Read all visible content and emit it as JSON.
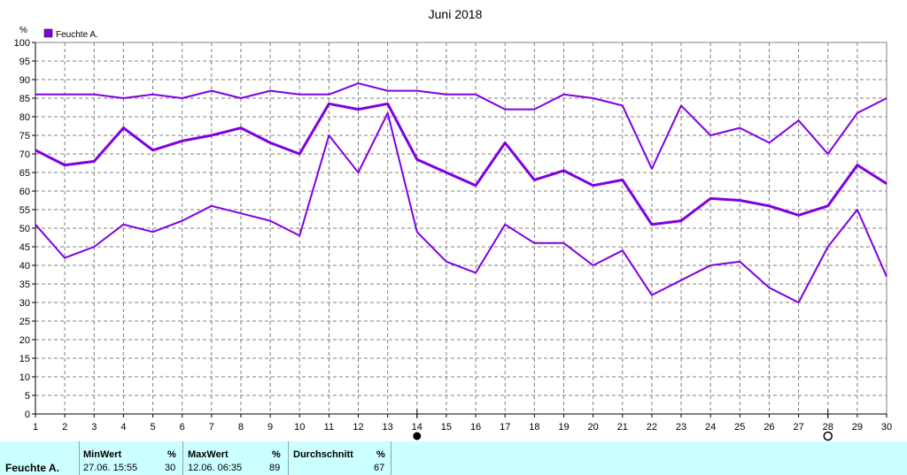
{
  "chart_data": {
    "type": "line",
    "title": "Juni 2018",
    "ylabel": "%",
    "xlabel": "",
    "ylim": [
      0,
      100
    ],
    "xlim": [
      1,
      30
    ],
    "grid": true,
    "legend_position": "top-left",
    "x_ticks": [
      "1",
      "2",
      "3",
      "4",
      "5",
      "6",
      "7",
      "8",
      "9",
      "10",
      "11",
      "12",
      "13",
      "14",
      "15",
      "16",
      "17",
      "18",
      "19",
      "20",
      "21",
      "22",
      "23",
      "24",
      "25",
      "26",
      "27",
      "28",
      "29",
      "30"
    ],
    "y_ticks": [
      "0",
      "5",
      "10",
      "15",
      "20",
      "25",
      "30",
      "35",
      "40",
      "45",
      "50",
      "55",
      "60",
      "65",
      "70",
      "75",
      "80",
      "85",
      "90",
      "95",
      "100"
    ],
    "legend": [
      "Feuchte A."
    ],
    "series": [
      {
        "name": "Feuchte A. max",
        "values": [
          86,
          86,
          86,
          85,
          86,
          85,
          87,
          85,
          87,
          86,
          86,
          89,
          87,
          87,
          86,
          86,
          82,
          82,
          86,
          85,
          83,
          66,
          83,
          75,
          77,
          73,
          79,
          70,
          81,
          85
        ]
      },
      {
        "name": "Feuchte A. avg",
        "values": [
          71,
          67,
          68,
          77,
          71,
          73.5,
          75,
          77,
          73,
          70,
          83.5,
          82,
          83.5,
          68.5,
          65,
          61.5,
          73,
          63,
          65.5,
          61.5,
          63,
          51,
          52,
          58,
          57.5,
          56,
          53.5,
          56,
          67,
          62
        ]
      },
      {
        "name": "Feuchte A. min",
        "values": [
          51,
          42,
          45,
          51,
          49,
          52,
          56,
          54,
          52,
          48,
          75,
          65,
          81,
          49,
          41,
          38,
          51,
          46,
          46,
          40,
          44,
          32,
          36,
          40,
          41,
          34,
          30,
          45,
          55,
          37
        ]
      }
    ],
    "line_color": "#8000e0",
    "markers": [
      {
        "x": 14,
        "kind": "filled-circle"
      },
      {
        "x": 28,
        "kind": "open-circle"
      }
    ]
  },
  "stats": {
    "series_label": "Feuchte A.",
    "min_label": "MinWert",
    "min_unit": "%",
    "min_date": "27.06.  15:55",
    "min_value": "30",
    "max_label": "MaxWert",
    "max_unit": "%",
    "max_date": "12.06.  06:35",
    "max_value": "89",
    "avg_label": "Durchschnitt",
    "avg_unit": "%",
    "avg_value": "67"
  }
}
